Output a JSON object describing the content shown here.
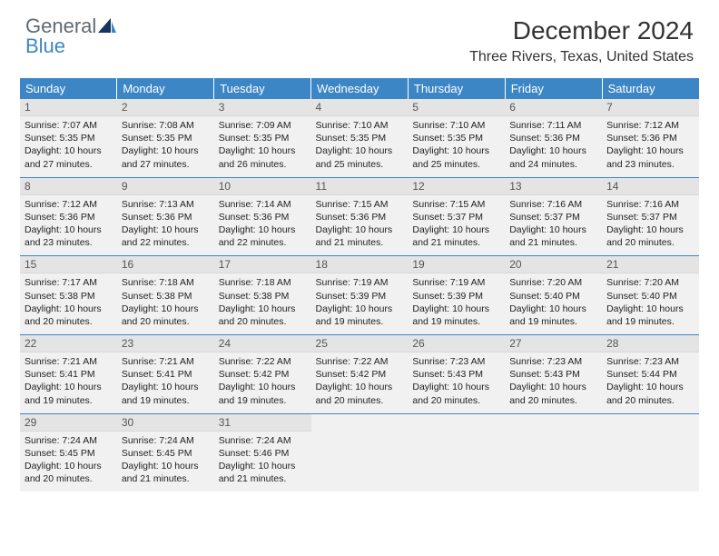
{
  "brand": {
    "part1": "General",
    "part2": "Blue"
  },
  "title": "December 2024",
  "subtitle": "Three Rivers, Texas, United States",
  "colors": {
    "header_bg": "#3d86c6",
    "header_fg": "#ffffff",
    "daynum_bg": "#e4e4e4",
    "cell_bg": "#f1f1f1",
    "row_border": "#3d86c6",
    "logo_gray": "#5f6a72",
    "logo_blue": "#3d86c6"
  },
  "weekdays": [
    "Sunday",
    "Monday",
    "Tuesday",
    "Wednesday",
    "Thursday",
    "Friday",
    "Saturday"
  ],
  "cells": [
    {
      "n": "1",
      "sr": "Sunrise: 7:07 AM",
      "ss": "Sunset: 5:35 PM",
      "dl": "Daylight: 10 hours and 27 minutes."
    },
    {
      "n": "2",
      "sr": "Sunrise: 7:08 AM",
      "ss": "Sunset: 5:35 PM",
      "dl": "Daylight: 10 hours and 27 minutes."
    },
    {
      "n": "3",
      "sr": "Sunrise: 7:09 AM",
      "ss": "Sunset: 5:35 PM",
      "dl": "Daylight: 10 hours and 26 minutes."
    },
    {
      "n": "4",
      "sr": "Sunrise: 7:10 AM",
      "ss": "Sunset: 5:35 PM",
      "dl": "Daylight: 10 hours and 25 minutes."
    },
    {
      "n": "5",
      "sr": "Sunrise: 7:10 AM",
      "ss": "Sunset: 5:35 PM",
      "dl": "Daylight: 10 hours and 25 minutes."
    },
    {
      "n": "6",
      "sr": "Sunrise: 7:11 AM",
      "ss": "Sunset: 5:36 PM",
      "dl": "Daylight: 10 hours and 24 minutes."
    },
    {
      "n": "7",
      "sr": "Sunrise: 7:12 AM",
      "ss": "Sunset: 5:36 PM",
      "dl": "Daylight: 10 hours and 23 minutes."
    },
    {
      "n": "8",
      "sr": "Sunrise: 7:12 AM",
      "ss": "Sunset: 5:36 PM",
      "dl": "Daylight: 10 hours and 23 minutes."
    },
    {
      "n": "9",
      "sr": "Sunrise: 7:13 AM",
      "ss": "Sunset: 5:36 PM",
      "dl": "Daylight: 10 hours and 22 minutes."
    },
    {
      "n": "10",
      "sr": "Sunrise: 7:14 AM",
      "ss": "Sunset: 5:36 PM",
      "dl": "Daylight: 10 hours and 22 minutes."
    },
    {
      "n": "11",
      "sr": "Sunrise: 7:15 AM",
      "ss": "Sunset: 5:36 PM",
      "dl": "Daylight: 10 hours and 21 minutes."
    },
    {
      "n": "12",
      "sr": "Sunrise: 7:15 AM",
      "ss": "Sunset: 5:37 PM",
      "dl": "Daylight: 10 hours and 21 minutes."
    },
    {
      "n": "13",
      "sr": "Sunrise: 7:16 AM",
      "ss": "Sunset: 5:37 PM",
      "dl": "Daylight: 10 hours and 21 minutes."
    },
    {
      "n": "14",
      "sr": "Sunrise: 7:16 AM",
      "ss": "Sunset: 5:37 PM",
      "dl": "Daylight: 10 hours and 20 minutes."
    },
    {
      "n": "15",
      "sr": "Sunrise: 7:17 AM",
      "ss": "Sunset: 5:38 PM",
      "dl": "Daylight: 10 hours and 20 minutes."
    },
    {
      "n": "16",
      "sr": "Sunrise: 7:18 AM",
      "ss": "Sunset: 5:38 PM",
      "dl": "Daylight: 10 hours and 20 minutes."
    },
    {
      "n": "17",
      "sr": "Sunrise: 7:18 AM",
      "ss": "Sunset: 5:38 PM",
      "dl": "Daylight: 10 hours and 20 minutes."
    },
    {
      "n": "18",
      "sr": "Sunrise: 7:19 AM",
      "ss": "Sunset: 5:39 PM",
      "dl": "Daylight: 10 hours and 19 minutes."
    },
    {
      "n": "19",
      "sr": "Sunrise: 7:19 AM",
      "ss": "Sunset: 5:39 PM",
      "dl": "Daylight: 10 hours and 19 minutes."
    },
    {
      "n": "20",
      "sr": "Sunrise: 7:20 AM",
      "ss": "Sunset: 5:40 PM",
      "dl": "Daylight: 10 hours and 19 minutes."
    },
    {
      "n": "21",
      "sr": "Sunrise: 7:20 AM",
      "ss": "Sunset: 5:40 PM",
      "dl": "Daylight: 10 hours and 19 minutes."
    },
    {
      "n": "22",
      "sr": "Sunrise: 7:21 AM",
      "ss": "Sunset: 5:41 PM",
      "dl": "Daylight: 10 hours and 19 minutes."
    },
    {
      "n": "23",
      "sr": "Sunrise: 7:21 AM",
      "ss": "Sunset: 5:41 PM",
      "dl": "Daylight: 10 hours and 19 minutes."
    },
    {
      "n": "24",
      "sr": "Sunrise: 7:22 AM",
      "ss": "Sunset: 5:42 PM",
      "dl": "Daylight: 10 hours and 19 minutes."
    },
    {
      "n": "25",
      "sr": "Sunrise: 7:22 AM",
      "ss": "Sunset: 5:42 PM",
      "dl": "Daylight: 10 hours and 20 minutes."
    },
    {
      "n": "26",
      "sr": "Sunrise: 7:23 AM",
      "ss": "Sunset: 5:43 PM",
      "dl": "Daylight: 10 hours and 20 minutes."
    },
    {
      "n": "27",
      "sr": "Sunrise: 7:23 AM",
      "ss": "Sunset: 5:43 PM",
      "dl": "Daylight: 10 hours and 20 minutes."
    },
    {
      "n": "28",
      "sr": "Sunrise: 7:23 AM",
      "ss": "Sunset: 5:44 PM",
      "dl": "Daylight: 10 hours and 20 minutes."
    },
    {
      "n": "29",
      "sr": "Sunrise: 7:24 AM",
      "ss": "Sunset: 5:45 PM",
      "dl": "Daylight: 10 hours and 20 minutes."
    },
    {
      "n": "30",
      "sr": "Sunrise: 7:24 AM",
      "ss": "Sunset: 5:45 PM",
      "dl": "Daylight: 10 hours and 21 minutes."
    },
    {
      "n": "31",
      "sr": "Sunrise: 7:24 AM",
      "ss": "Sunset: 5:46 PM",
      "dl": "Daylight: 10 hours and 21 minutes."
    },
    {
      "empty": true
    },
    {
      "empty": true
    },
    {
      "empty": true
    },
    {
      "empty": true
    }
  ]
}
